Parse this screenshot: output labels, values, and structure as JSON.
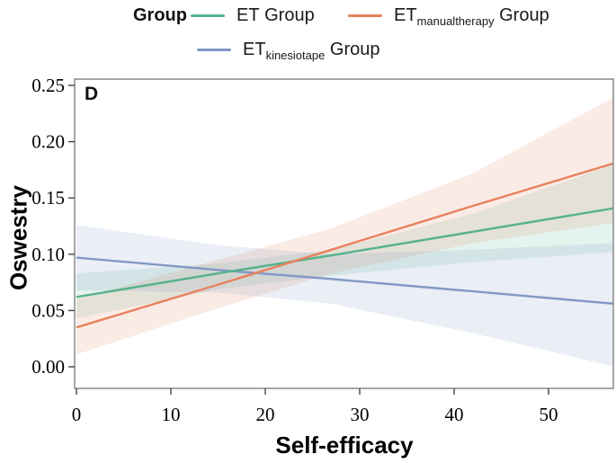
{
  "figure": {
    "panel_label": "D"
  },
  "legend": {
    "title": "Group",
    "items": [
      {
        "base": "ET",
        "sub": "",
        "suffix": " Group",
        "color": "#54b28c"
      },
      {
        "base": "ET",
        "sub": "manualtherapy",
        "suffix": " Group",
        "color": "#e8815d"
      },
      {
        "base": "ET",
        "sub": "kinesiotape",
        "suffix": " Group",
        "color": "#8298c5"
      }
    ]
  },
  "axes": {
    "x_title": "Self-efficacy",
    "y_title": "Oswestry"
  },
  "chart_data": {
    "type": "line",
    "title": "",
    "panel_label": "D",
    "xlabel": "Self-efficacy",
    "ylabel": "Oswestry",
    "xlim": [
      0,
      57
    ],
    "ylim": [
      0,
      0.25
    ],
    "grid": false,
    "legend_position": "top",
    "x_ticks": [
      {
        "value": 0,
        "label": "0"
      },
      {
        "value": 10,
        "label": "10"
      },
      {
        "value": 20,
        "label": "20"
      },
      {
        "value": 30,
        "label": "30"
      },
      {
        "value": 40,
        "label": "40"
      },
      {
        "value": 50,
        "label": "50"
      }
    ],
    "y_ticks": [
      {
        "value": 0.0,
        "label": "0.00"
      },
      {
        "value": 0.05,
        "label": "0.05"
      },
      {
        "value": 0.1,
        "label": "0.10"
      },
      {
        "value": 0.15,
        "label": "0.15"
      },
      {
        "value": 0.2,
        "label": "0.20"
      },
      {
        "value": 0.25,
        "label": "0.25"
      }
    ],
    "series": [
      {
        "id": "et",
        "name": "ET Group",
        "color": "#54b28c",
        "band_opacity": 0.16,
        "x": [
          0,
          15,
          27,
          42,
          57
        ],
        "y": [
          0.062,
          0.083,
          0.099,
          0.12,
          0.141
        ],
        "ci_upper": [
          0.083,
          0.092,
          0.104,
          0.136,
          0.18
        ],
        "ci_lower": [
          0.043,
          0.069,
          0.081,
          0.093,
          0.102
        ]
      },
      {
        "id": "manualtherapy",
        "name": "ET manualtherapy Group",
        "color": "#e8815d",
        "band_opacity": 0.16,
        "x": [
          0,
          15,
          27,
          42,
          57
        ],
        "y": [
          0.035,
          0.073,
          0.104,
          0.143,
          0.181
        ],
        "ci_upper": [
          0.06,
          0.095,
          0.123,
          0.172,
          0.24
        ],
        "ci_lower": [
          0.011,
          0.052,
          0.083,
          0.11,
          0.128
        ]
      },
      {
        "id": "kinesiotape",
        "name": "ET kinesiotape Group",
        "color": "#8298c5",
        "band_opacity": 0.17,
        "x": [
          0,
          15,
          27,
          42,
          57
        ],
        "y": [
          0.097,
          0.086,
          0.078,
          0.067,
          0.056
        ],
        "ci_upper": [
          0.126,
          0.108,
          0.1,
          0.104,
          0.11
        ],
        "ci_lower": [
          0.068,
          0.066,
          0.056,
          0.03,
          0.0
        ]
      }
    ]
  }
}
